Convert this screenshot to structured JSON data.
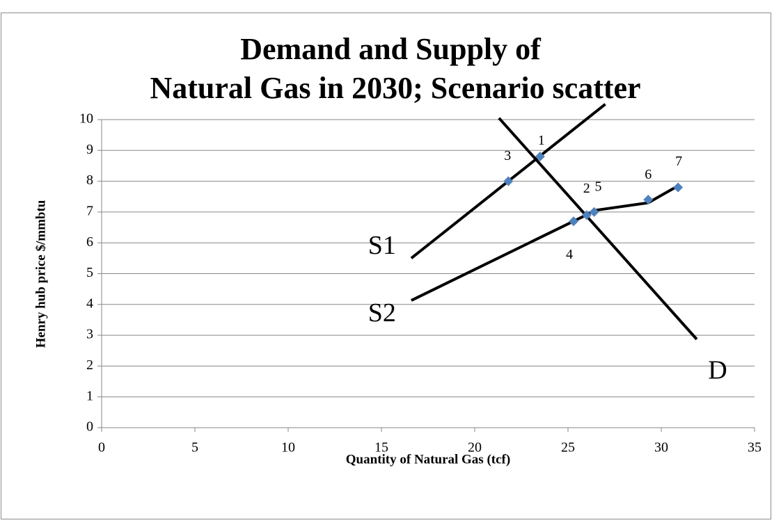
{
  "chart_data": {
    "type": "scatter",
    "title": [
      "Demand and Supply of",
      "Natural Gas in 2030; Scenario scatter"
    ],
    "x_label": "Quantity of Natural Gas (tcf)",
    "y_label": "Henry hub price $/mmbtu",
    "series": [
      {
        "color": "#4f81bd",
        "x": [
          23.5,
          26.0,
          21.8,
          25.3,
          26.4,
          29.3,
          30.9
        ],
        "values": [
          8.8,
          6.9,
          8.0,
          6.7,
          7.0,
          7.4,
          7.8
        ],
        "point_labels": [
          "1",
          "2",
          "3",
          "4",
          "5",
          "6",
          "7"
        ]
      }
    ],
    "lines": [
      {
        "label": "S1",
        "color": "#000000",
        "x": [
          16.6,
          27.0
        ],
        "y": [
          5.5,
          10.5
        ]
      },
      {
        "label": "S2",
        "color": "#000000",
        "x": [
          16.6,
          25.8,
          26.4,
          29.3,
          30.9
        ],
        "y": [
          4.13,
          6.85,
          7.05,
          7.3,
          7.85
        ]
      },
      {
        "label": "D",
        "color": "#000000",
        "x": [
          21.3,
          31.9
        ],
        "y": [
          10.05,
          2.87
        ]
      }
    ],
    "xlim": [
      0,
      35
    ],
    "xticks": [
      0,
      5,
      10,
      15,
      20,
      25,
      30,
      35
    ],
    "ylim": [
      0,
      10
    ],
    "yticks": [
      0,
      1,
      2,
      3,
      4,
      5,
      6,
      7,
      8,
      9,
      10
    ],
    "grid": true
  }
}
